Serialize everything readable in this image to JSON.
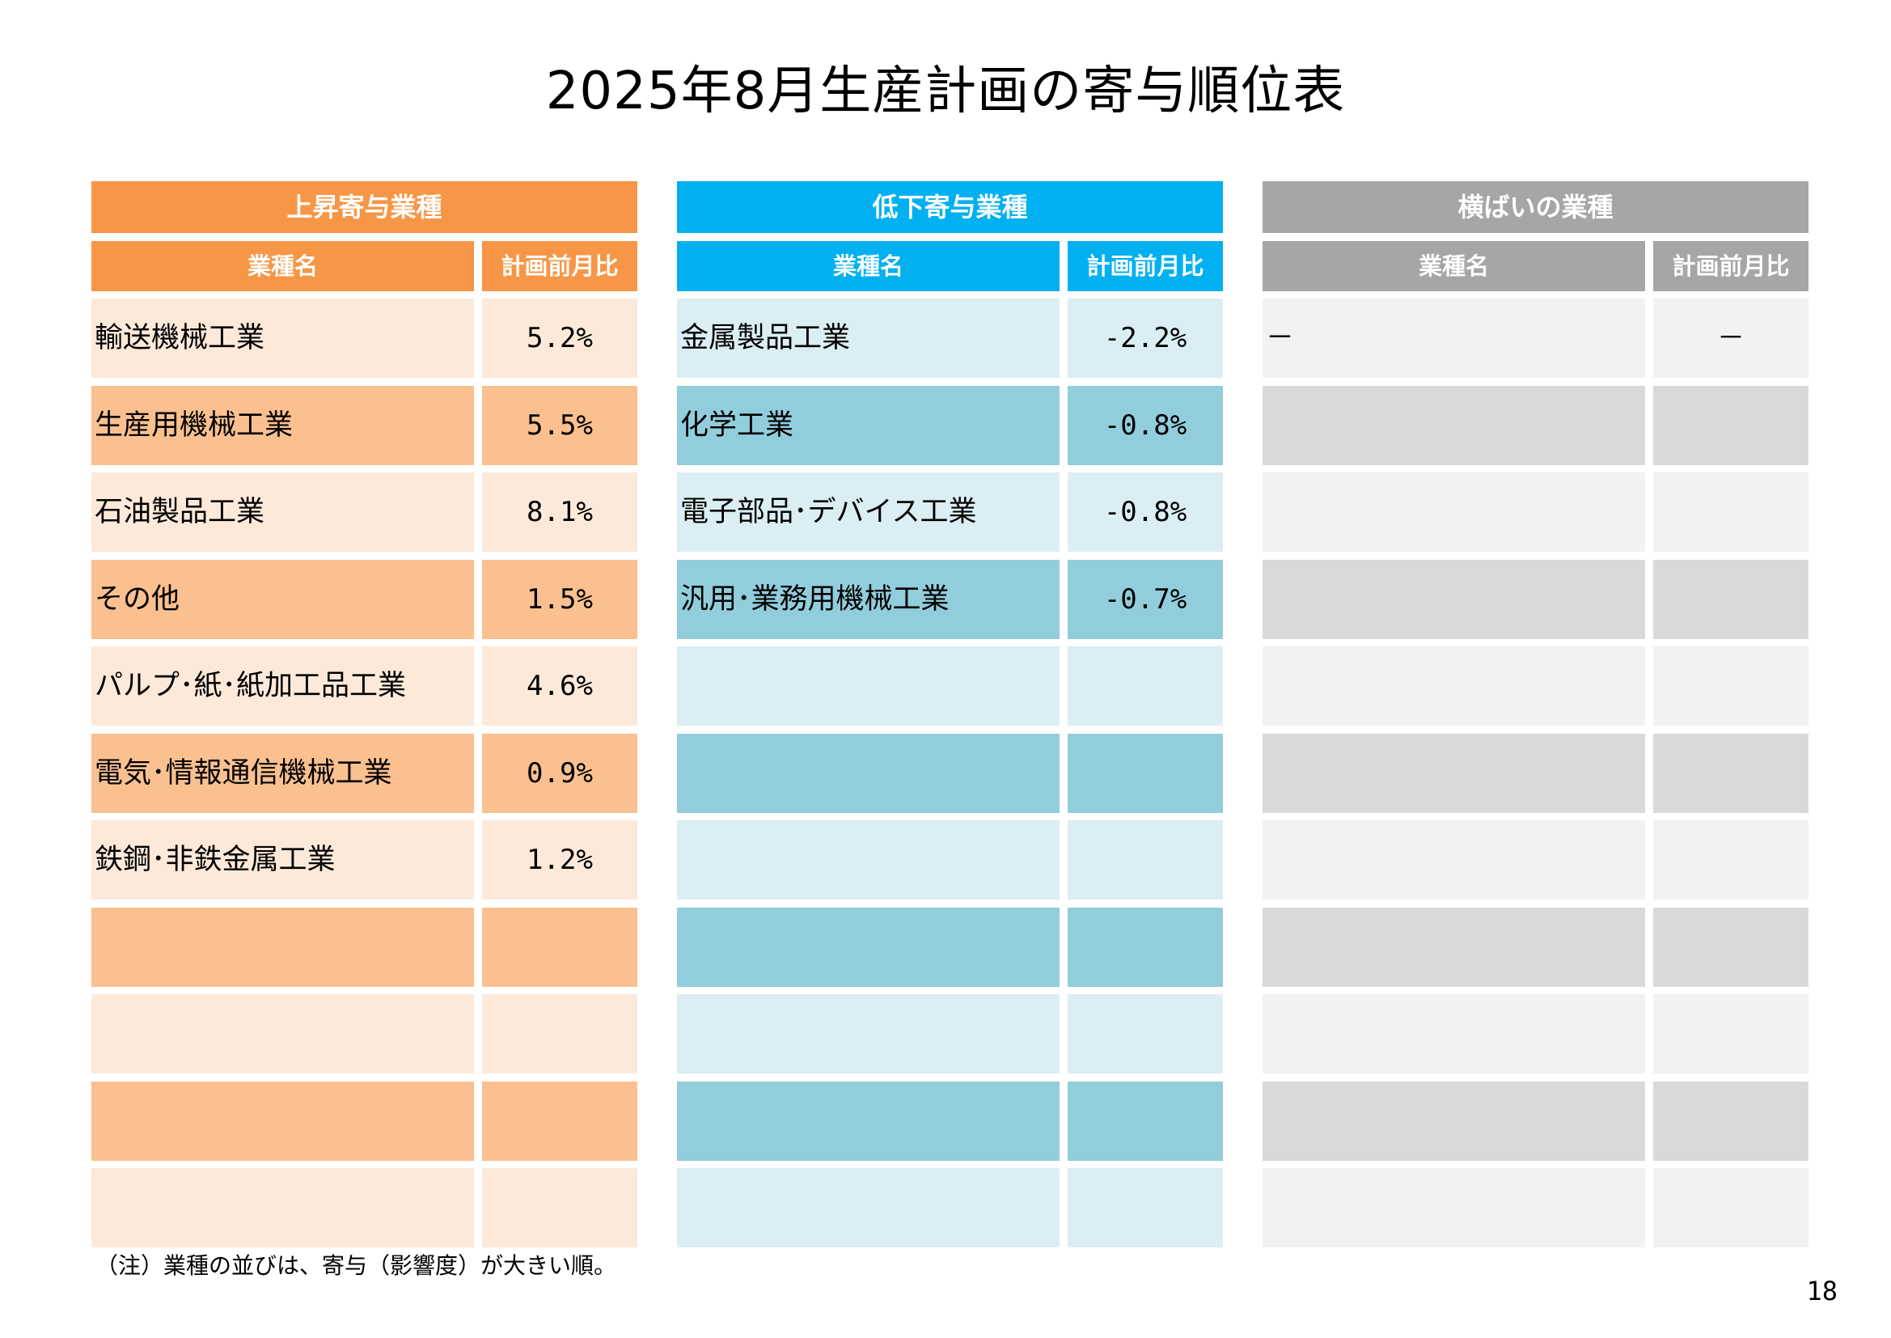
{
  "page": {
    "title": "2025年8月生産計画の寄与順位表",
    "note": "（注）業種の並びは、寄与（影響度）が大きい順。",
    "page_number": "18"
  },
  "panels": [
    {
      "id": "up",
      "header": "上昇寄与業種",
      "col_name": "業種名",
      "col_value": "計画前月比",
      "colors": {
        "header": "#F79646",
        "row_light": "#FDE9D9",
        "row_dark": "#FAC090"
      },
      "rows": [
        {
          "name": "輸送機械工業",
          "value": "5.2%"
        },
        {
          "name": "生産用機械工業",
          "value": "5.5%"
        },
        {
          "name": "石油製品工業",
          "value": "8.1%"
        },
        {
          "name": "その他",
          "value": "1.5%"
        },
        {
          "name": "パルプ･紙･紙加工品工業",
          "value": "4.6%"
        },
        {
          "name": "電気･情報通信機械工業",
          "value": "0.9%"
        },
        {
          "name": "鉄鋼･非鉄金属工業",
          "value": "1.2%"
        },
        {
          "name": "",
          "value": ""
        },
        {
          "name": "",
          "value": ""
        },
        {
          "name": "",
          "value": ""
        },
        {
          "name": "",
          "value": ""
        }
      ]
    },
    {
      "id": "down",
      "header": "低下寄与業種",
      "col_name": "業種名",
      "col_value": "計画前月比",
      "colors": {
        "header": "#00B0F0",
        "row_light": "#DAEEF3",
        "row_dark": "#92CDDC"
      },
      "rows": [
        {
          "name": "金属製品工業",
          "value": "-2.2%"
        },
        {
          "name": "化学工業",
          "value": "-0.8%"
        },
        {
          "name": "電子部品･デバイス工業",
          "value": "-0.8%"
        },
        {
          "name": "汎用･業務用機械工業",
          "value": "-0.7%"
        },
        {
          "name": "",
          "value": ""
        },
        {
          "name": "",
          "value": ""
        },
        {
          "name": "",
          "value": ""
        },
        {
          "name": "",
          "value": ""
        },
        {
          "name": "",
          "value": ""
        },
        {
          "name": "",
          "value": ""
        },
        {
          "name": "",
          "value": ""
        }
      ]
    },
    {
      "id": "flat",
      "header": "横ばいの業種",
      "col_name": "業種名",
      "col_value": "計画前月比",
      "colors": {
        "header": "#A6A6A6",
        "row_light": "#F2F2F2",
        "row_dark": "#D9D9D9"
      },
      "rows": [
        {
          "name": "－",
          "value": "－"
        },
        {
          "name": "",
          "value": ""
        },
        {
          "name": "",
          "value": ""
        },
        {
          "name": "",
          "value": ""
        },
        {
          "name": "",
          "value": ""
        },
        {
          "name": "",
          "value": ""
        },
        {
          "name": "",
          "value": ""
        },
        {
          "name": "",
          "value": ""
        },
        {
          "name": "",
          "value": ""
        },
        {
          "name": "",
          "value": ""
        },
        {
          "name": "",
          "value": ""
        }
      ]
    }
  ]
}
